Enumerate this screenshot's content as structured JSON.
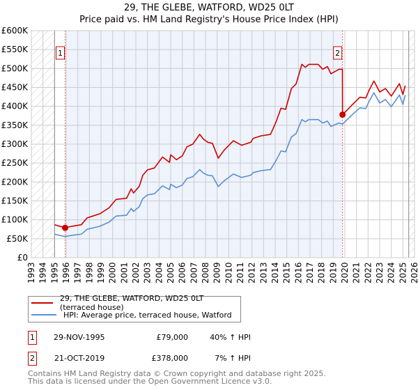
{
  "chart_data": {
    "type": "line",
    "title": "29, THE GLEBE, WATFORD, WD25 0LT",
    "subtitle": "Price paid vs. HM Land Registry's House Price Index (HPI)",
    "xlim": [
      1993,
      2026
    ],
    "ylim": [
      0,
      600000
    ],
    "x_ticks": [
      "1993",
      "1994",
      "1995",
      "1996",
      "1997",
      "1998",
      "1999",
      "2000",
      "2001",
      "2002",
      "2003",
      "2004",
      "2005",
      "2006",
      "2007",
      "2008",
      "2009",
      "2010",
      "2011",
      "2012",
      "2013",
      "2014",
      "2015",
      "2016",
      "2017",
      "2018",
      "2019",
      "2020",
      "2021",
      "2022",
      "2023",
      "2024",
      "2025",
      "2026"
    ],
    "y_ticks": [
      {
        "v": 0,
        "label": "£0"
      },
      {
        "v": 50000,
        "label": "£50K"
      },
      {
        "v": 100000,
        "label": "£100K"
      },
      {
        "v": 150000,
        "label": "£150K"
      },
      {
        "v": 200000,
        "label": "£200K"
      },
      {
        "v": 250000,
        "label": "£250K"
      },
      {
        "v": 300000,
        "label": "£300K"
      },
      {
        "v": 350000,
        "label": "£350K"
      },
      {
        "v": 400000,
        "label": "£400K"
      },
      {
        "v": 450000,
        "label": "£450K"
      },
      {
        "v": 500000,
        "label": "£500K"
      },
      {
        "v": 550000,
        "label": "£550K"
      },
      {
        "v": 600000,
        "label": "£600K"
      }
    ],
    "grid": true,
    "hatched_ranges": [
      [
        1993,
        1995
      ],
      [
        2025.5,
        2026
      ]
    ],
    "shaded_range": [
      1995.91,
      2019.8
    ],
    "series": [
      {
        "name": "29, THE GLEBE, WATFORD, WD25 0LT (terraced house)",
        "color": "#cc0000",
        "x": [
          1995.0,
          1995.9,
          1996.5,
          1997.3,
          1997.8,
          1998.9,
          1999.7,
          2000.3,
          2001.2,
          2001.6,
          2001.8,
          2002.3,
          2002.6,
          2003.0,
          2003.6,
          2004.3,
          2004.9,
          2005.0,
          2005.5,
          2006.0,
          2006.4,
          2006.9,
          2007.5,
          2007.8,
          2008.2,
          2008.6,
          2009.1,
          2009.6,
          2010.4,
          2011.1,
          2011.9,
          2012.1,
          2012.8,
          2013.6,
          2014.1,
          2014.5,
          2014.9,
          2015.4,
          2015.8,
          2016.3,
          2016.6,
          2016.9,
          2017.7,
          2018.1,
          2018.5,
          2018.8,
          2019.5,
          2019.79,
          2019.8,
          2020.1,
          2020.6,
          2021.3,
          2021.8,
          2022.1,
          2022.5,
          2023.0,
          2023.5,
          2024.0,
          2024.7,
          2025.0,
          2025.2
        ],
        "y": [
          87000,
          79000,
          83000,
          87000,
          105000,
          116000,
          132000,
          154000,
          157000,
          182000,
          171000,
          189000,
          218000,
          232000,
          237000,
          266000,
          252000,
          272000,
          259000,
          269000,
          293000,
          300000,
          326000,
          314000,
          305000,
          302000,
          263000,
          284000,
          309000,
          297000,
          305000,
          315000,
          322000,
          326000,
          361000,
          395000,
          392000,
          447000,
          459000,
          511000,
          503000,
          511000,
          511000,
          498000,
          505000,
          486000,
          498000,
          498000,
          378000,
          387000,
          403000,
          424000,
          422000,
          443000,
          467000,
          438000,
          447000,
          427000,
          460000,
          431000,
          455000
        ]
      },
      {
        "name": "HPI: Average price, terraced house, Watford",
        "color": "#5b8fd4",
        "x": [
          1995.0,
          1995.9,
          1996.5,
          1997.3,
          1997.8,
          1998.9,
          1999.7,
          2000.3,
          2001.2,
          2001.6,
          2001.8,
          2002.3,
          2002.6,
          2003.0,
          2003.6,
          2004.3,
          2004.9,
          2005.0,
          2005.5,
          2006.0,
          2006.4,
          2006.9,
          2007.5,
          2007.8,
          2008.2,
          2008.6,
          2009.1,
          2009.6,
          2010.4,
          2011.1,
          2011.9,
          2012.1,
          2012.8,
          2013.6,
          2014.1,
          2014.5,
          2014.9,
          2015.4,
          2015.8,
          2016.3,
          2016.6,
          2016.9,
          2017.7,
          2018.1,
          2018.5,
          2018.8,
          2019.5,
          2019.8,
          2020.1,
          2020.6,
          2021.3,
          2021.8,
          2022.1,
          2022.5,
          2023.0,
          2023.5,
          2024.0,
          2024.7,
          2025.0,
          2025.2
        ],
        "y": [
          62000,
          56000,
          59000,
          62000,
          75000,
          83000,
          94000,
          110000,
          112000,
          130000,
          122000,
          135000,
          156000,
          166000,
          169000,
          190000,
          180000,
          194000,
          185000,
          192000,
          209000,
          214000,
          233000,
          224000,
          218000,
          216000,
          188000,
          203000,
          221000,
          212000,
          218000,
          225000,
          230000,
          233000,
          258000,
          282000,
          280000,
          319000,
          328000,
          365000,
          359000,
          365000,
          365000,
          356000,
          361000,
          347000,
          356000,
          353000,
          362000,
          377000,
          396000,
          394000,
          414000,
          436000,
          409000,
          418000,
          399000,
          430000,
          405000,
          430000
        ]
      }
    ],
    "sales": [
      {
        "n": "1",
        "x": 1995.91,
        "y": 79000
      },
      {
        "n": "2",
        "x": 2019.8,
        "y": 378000
      }
    ]
  },
  "legend": {
    "property": "29, THE GLEBE, WATFORD, WD25 0LT (terraced house)",
    "hpi": "HPI: Average price, terraced house, Watford"
  },
  "transactions": [
    {
      "n": "1",
      "date": "29-NOV-1995",
      "price": "£79,000",
      "hpi": "40% ↑ HPI"
    },
    {
      "n": "2",
      "date": "21-OCT-2019",
      "price": "£378,000",
      "hpi": "7% ↑ HPI"
    }
  ],
  "footer": {
    "line1": "Contains HM Land Registry data © Crown copyright and database right 2025.",
    "line2": "This data is licensed under the Open Government Licence v3.0."
  }
}
